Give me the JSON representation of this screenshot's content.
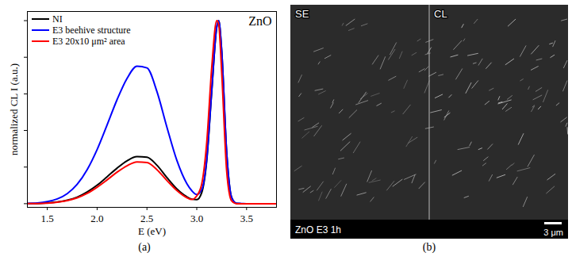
{
  "chart_data": {
    "type": "line",
    "xlabel": "E (eV)",
    "ylabel": "normalized CL I (a.u.)",
    "annotations": [
      "ZnO"
    ],
    "caption": "(a)",
    "x": [
      1.3,
      1.4,
      1.5,
      1.6,
      1.7,
      1.8,
      1.9,
      2.0,
      2.1,
      2.2,
      2.3,
      2.4,
      2.5,
      2.6,
      2.7,
      2.8,
      2.9,
      2.95,
      3.0,
      3.05,
      3.1,
      3.15,
      3.2,
      3.22,
      3.25,
      3.3,
      3.35,
      3.4,
      3.45,
      3.5,
      3.6,
      3.7,
      3.8
    ],
    "series": [
      {
        "name": "NI",
        "color": "#000000",
        "values": [
          0.001,
          0.001,
          0.004,
          0.009,
          0.019,
          0.036,
          0.064,
          0.101,
          0.147,
          0.194,
          0.234,
          0.257,
          0.254,
          0.21,
          0.143,
          0.081,
          0.038,
          0.025,
          0.022,
          0.061,
          0.235,
          0.612,
          0.962,
          1.0,
          0.835,
          0.28,
          0.034,
          0.002,
          0.0,
          0.0,
          0.0,
          0.0,
          0.0
        ]
      },
      {
        "name": "E3 beehive structure",
        "color": "#0000ff",
        "values": [
          0.002,
          0.004,
          0.011,
          0.026,
          0.055,
          0.106,
          0.186,
          0.296,
          0.43,
          0.568,
          0.684,
          0.751,
          0.742,
          0.613,
          0.419,
          0.237,
          0.11,
          0.071,
          0.05,
          0.077,
          0.244,
          0.617,
          0.965,
          1.0,
          0.837,
          0.281,
          0.034,
          0.002,
          0.001,
          0.0,
          0.0,
          0.0,
          0.0
        ]
      },
      {
        "name": "E3 20x10 μm² area",
        "color": "#ff0000",
        "values": [
          0.001,
          0.001,
          0.003,
          0.008,
          0.017,
          0.032,
          0.056,
          0.09,
          0.13,
          0.172,
          0.207,
          0.228,
          0.225,
          0.186,
          0.127,
          0.072,
          0.033,
          0.023,
          0.043,
          0.108,
          0.334,
          0.742,
          1.0,
          0.98,
          0.72,
          0.18,
          0.015,
          0.0,
          0.0,
          0.0,
          0.0,
          0.0,
          0.0
        ]
      }
    ],
    "xlim": [
      1.3,
      3.8
    ],
    "xticks": [
      1.5,
      {
        "value": 2,
        "label": "2.0"
      },
      2.5,
      {
        "value": 3,
        "label": "3.0"
      },
      3.5
    ],
    "ylim": [
      -0.02,
      1.05
    ],
    "yticks": [
      0,
      0.2,
      0.4,
      0.6,
      0.8,
      1.0
    ],
    "tick_labels": "x",
    "legend": "top-left"
  },
  "image_panel": {
    "caption": "(b)",
    "labels": {
      "left": "SE",
      "right": "CL",
      "bottom_left": "ZnO E3 1h",
      "scale_bar": "3 μm"
    }
  }
}
